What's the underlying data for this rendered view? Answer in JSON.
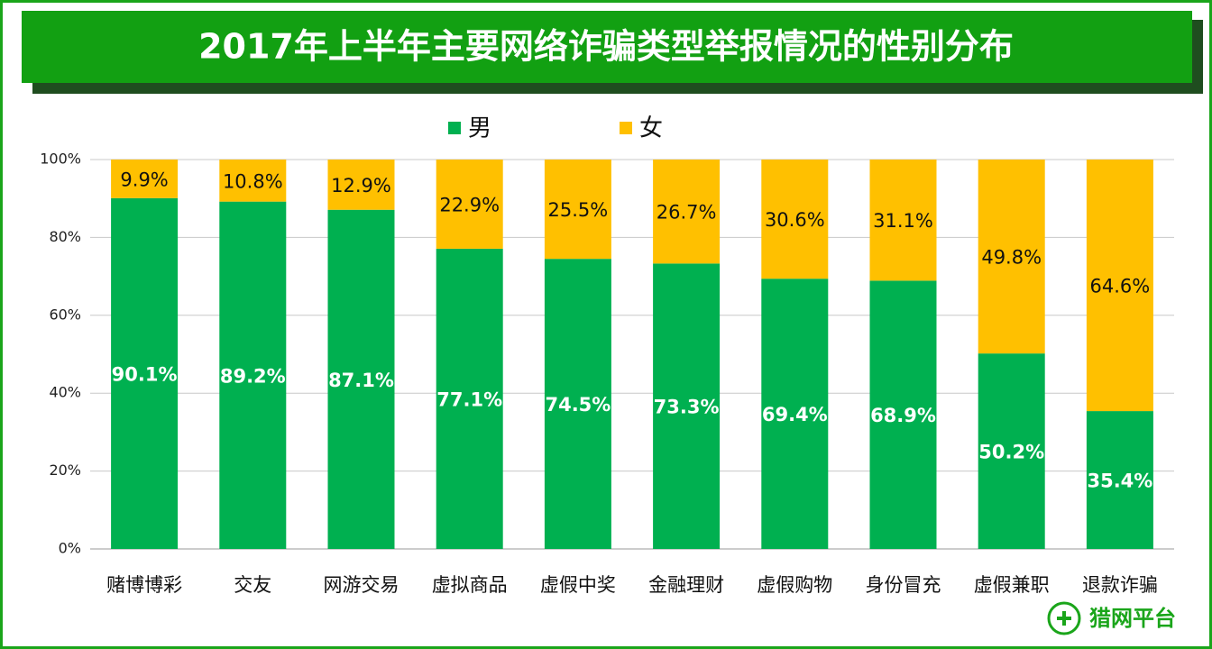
{
  "chart_data": {
    "type": "stacked_bar",
    "title": "2017年上半年主要网络诈骗类型举报情况的性别分布",
    "categories": [
      "赌博博彩",
      "交友",
      "网游交易",
      "虚拟商品",
      "虚假中奖",
      "金融理财",
      "虚假购物",
      "身份冒充",
      "虚假兼职",
      "退款诈骗"
    ],
    "series": [
      {
        "name": "男",
        "color": "#00b050",
        "values": [
          90.1,
          89.2,
          87.1,
          77.1,
          74.5,
          73.3,
          69.4,
          68.9,
          50.2,
          35.4
        ],
        "value_labels": [
          "90.1%",
          "89.2%",
          "87.1%",
          "77.1%",
          "74.5%",
          "73.3%",
          "69.4%",
          "68.9%",
          "50.2%",
          "35.4%"
        ]
      },
      {
        "name": "女",
        "color": "#ffc000",
        "values": [
          9.9,
          10.8,
          12.9,
          22.9,
          25.5,
          26.7,
          30.6,
          31.1,
          49.8,
          64.6
        ],
        "value_labels": [
          "9.9%",
          "10.8%",
          "12.9%",
          "22.9%",
          "25.5%",
          "26.7%",
          "30.6%",
          "31.1%",
          "49.8%",
          "64.6%"
        ]
      }
    ],
    "ylim": [
      0,
      100
    ],
    "yticks": [
      {
        "value": 0,
        "label": "0%"
      },
      {
        "value": 20,
        "label": "20%"
      },
      {
        "value": 40,
        "label": "40%"
      },
      {
        "value": 60,
        "label": "60%"
      },
      {
        "value": 80,
        "label": "80%"
      },
      {
        "value": 100,
        "label": "100%"
      }
    ],
    "grid": true,
    "legend": "top"
  },
  "logo": "猎网平台"
}
